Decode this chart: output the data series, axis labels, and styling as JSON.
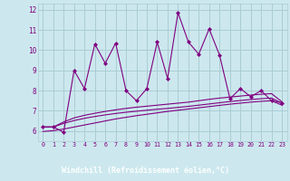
{
  "xlabel": "Windchill (Refroidissement éolien,°C)",
  "bg_color": "#cce8ee",
  "grid_color": "#aaccd4",
  "line_color": "#800080",
  "label_bg": "#6a006a",
  "label_fg": "#ffffff",
  "xlim": [
    -0.5,
    23.5
  ],
  "ylim": [
    5.5,
    12.3
  ],
  "yticks": [
    6,
    7,
    8,
    9,
    10,
    11,
    12
  ],
  "xticks": [
    0,
    1,
    2,
    3,
    4,
    5,
    6,
    7,
    8,
    9,
    10,
    11,
    12,
    13,
    14,
    15,
    16,
    17,
    18,
    19,
    20,
    21,
    22,
    23
  ],
  "main_x": [
    0,
    1,
    2,
    3,
    4,
    5,
    6,
    7,
    8,
    9,
    10,
    11,
    12,
    13,
    14,
    15,
    16,
    17,
    18,
    19,
    20,
    21,
    22,
    23
  ],
  "main_y": [
    6.2,
    6.2,
    5.95,
    9.0,
    8.1,
    10.3,
    9.35,
    10.35,
    8.0,
    7.5,
    8.1,
    10.4,
    8.6,
    11.85,
    10.4,
    9.8,
    11.05,
    9.75,
    7.6,
    8.1,
    7.7,
    8.0,
    7.5,
    7.4
  ],
  "smooth1_x": [
    0,
    1,
    2,
    3,
    4,
    5,
    6,
    7,
    8,
    9,
    10,
    11,
    12,
    13,
    14,
    15,
    16,
    17,
    18,
    19,
    20,
    21,
    22,
    23
  ],
  "smooth1_y": [
    6.2,
    6.2,
    6.45,
    6.65,
    6.78,
    6.88,
    6.97,
    7.05,
    7.12,
    7.18,
    7.23,
    7.28,
    7.33,
    7.38,
    7.43,
    7.5,
    7.57,
    7.63,
    7.68,
    7.73,
    7.78,
    7.82,
    7.85,
    7.45
  ],
  "smooth2_x": [
    0,
    1,
    2,
    3,
    4,
    5,
    6,
    7,
    8,
    9,
    10,
    11,
    12,
    13,
    14,
    15,
    16,
    17,
    18,
    19,
    20,
    21,
    22,
    23
  ],
  "smooth2_y": [
    6.2,
    6.2,
    6.38,
    6.52,
    6.63,
    6.72,
    6.8,
    6.87,
    6.93,
    6.98,
    7.03,
    7.08,
    7.12,
    7.17,
    7.22,
    7.28,
    7.34,
    7.4,
    7.46,
    7.51,
    7.56,
    7.6,
    7.63,
    7.38
  ],
  "smooth3_x": [
    0,
    1,
    2,
    3,
    4,
    5,
    6,
    7,
    8,
    9,
    10,
    11,
    12,
    13,
    14,
    15,
    16,
    17,
    18,
    19,
    20,
    21,
    22,
    23
  ],
  "smooth3_y": [
    5.98,
    6.02,
    6.1,
    6.2,
    6.3,
    6.4,
    6.5,
    6.6,
    6.68,
    6.76,
    6.83,
    6.9,
    6.97,
    7.03,
    7.09,
    7.15,
    7.21,
    7.27,
    7.33,
    7.38,
    7.43,
    7.47,
    7.5,
    7.28
  ]
}
